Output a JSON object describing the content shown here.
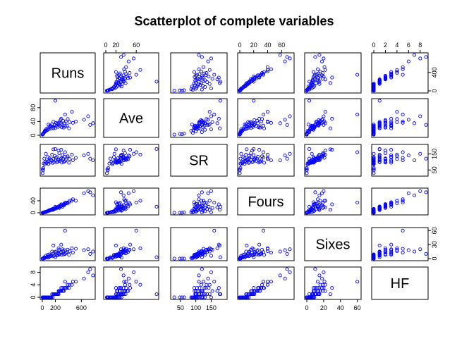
{
  "chart_data": {
    "type": "scatter",
    "title": "Scatterplot of complete variables",
    "variables": [
      "Runs",
      "Ave",
      "SR",
      "Fours",
      "Sixes",
      "HF"
    ],
    "point_color": "#0000ff",
    "axes": {
      "Runs": {
        "range": [
          0,
          780
        ],
        "ticks": [
          "0",
          "200",
          "600"
        ],
        "tick_values": [
          0,
          200,
          600
        ]
      },
      "Ave": {
        "range": [
          0,
          100
        ],
        "ticks": [
          "0",
          "20",
          "60"
        ],
        "tick_values": [
          0,
          20,
          60
        ]
      },
      "SR": {
        "range": [
          25,
          195
        ],
        "ticks": [
          "50",
          "100",
          "150"
        ],
        "tick_values": [
          50,
          100,
          150
        ]
      },
      "Fours": {
        "range": [
          0,
          75
        ],
        "ticks": [
          "0",
          "20",
          "40",
          "60"
        ],
        "tick_values": [
          0,
          20,
          40,
          60
        ]
      },
      "Sixes": {
        "range": [
          0,
          62
        ],
        "ticks": [
          "0",
          "20",
          "40",
          "60"
        ],
        "tick_values": [
          0,
          20,
          40,
          60
        ]
      },
      "HF": {
        "range": [
          0,
          9
        ],
        "ticks": [
          "0",
          "2",
          "4",
          "6",
          "8"
        ],
        "tick_values": [
          0,
          2,
          4,
          6,
          8
        ]
      }
    },
    "axis_ticks_on_plot": {
      "Runs": {
        "ticks": [
          "0",
          "400"
        ],
        "tick_values": [
          0,
          400
        ]
      },
      "Ave": {
        "ticks": [
          "0",
          "40",
          "80"
        ],
        "tick_values": [
          0,
          40,
          80
        ]
      },
      "SR": {
        "ticks": [
          "50",
          "150"
        ],
        "tick_values": [
          50,
          150
        ]
      },
      "Fours": {
        "ticks": [
          "0",
          "40"
        ],
        "tick_values": [
          0,
          40
        ]
      },
      "Sixes": {
        "ticks": [
          "0",
          "30",
          "60"
        ],
        "tick_values": [
          0,
          30,
          60
        ]
      },
      "HF": {
        "ticks": [
          "0",
          "4",
          "8"
        ],
        "tick_values": [
          0,
          4,
          8
        ]
      }
    },
    "records": [
      [
        778,
        35,
        110,
        58,
        15,
        7
      ],
      [
        704,
        55,
        150,
        72,
        20,
        8
      ],
      [
        640,
        45,
        140,
        65,
        18,
        6
      ],
      [
        735,
        30,
        120,
        68,
        10,
        9
      ],
      [
        515,
        40,
        125,
        40,
        21,
        5
      ],
      [
        470,
        36,
        110,
        45,
        13,
        5
      ],
      [
        455,
        68,
        145,
        40,
        22,
        4
      ],
      [
        420,
        38,
        118,
        40,
        16,
        4
      ],
      [
        410,
        20,
        95,
        35,
        8,
        3
      ],
      [
        390,
        47,
        135,
        32,
        19,
        4
      ],
      [
        380,
        28,
        128,
        34,
        14,
        3
      ],
      [
        360,
        40,
        112,
        31,
        12,
        3
      ],
      [
        350,
        26,
        104,
        30,
        10,
        3
      ],
      [
        340,
        35,
        132,
        26,
        18,
        3
      ],
      [
        330,
        22,
        100,
        29,
        9,
        2
      ],
      [
        320,
        42,
        120,
        25,
        16,
        2
      ],
      [
        310,
        30,
        142,
        20,
        20,
        3
      ],
      [
        300,
        23,
        96,
        27,
        8,
        2
      ],
      [
        290,
        33,
        122,
        22,
        13,
        2
      ],
      [
        280,
        44,
        117,
        21,
        14,
        2
      ],
      [
        270,
        27,
        106,
        24,
        9,
        2
      ],
      [
        260,
        38,
        154,
        16,
        19,
        2
      ],
      [
        250,
        31,
        112,
        21,
        10,
        1
      ],
      [
        240,
        24,
        102,
        19,
        7,
        1
      ],
      [
        230,
        34,
        130,
        17,
        13,
        1
      ],
      [
        220,
        28,
        98,
        18,
        7,
        1
      ],
      [
        210,
        36,
        125,
        14,
        15,
        1
      ],
      [
        200,
        21,
        110,
        16,
        8,
        1
      ],
      [
        190,
        30,
        137,
        13,
        14,
        1
      ],
      [
        180,
        25,
        100,
        14,
        6,
        1
      ],
      [
        170,
        39,
        118,
        12,
        11,
        1
      ],
      [
        160,
        22,
        94,
        13,
        5,
        0
      ],
      [
        150,
        32,
        145,
        9,
        15,
        1
      ],
      [
        140,
        26,
        108,
        11,
        6,
        0
      ],
      [
        130,
        19,
        115,
        10,
        7,
        0
      ],
      [
        120,
        28,
        97,
        9,
        5,
        0
      ],
      [
        110,
        24,
        123,
        7,
        9,
        0
      ],
      [
        100,
        18,
        105,
        8,
        4,
        0
      ],
      [
        95,
        31,
        88,
        7,
        2,
        0
      ],
      [
        85,
        16,
        130,
        5,
        8,
        0
      ],
      [
        75,
        20,
        102,
        5,
        4,
        0
      ],
      [
        65,
        14,
        92,
        4,
        3,
        0
      ],
      [
        55,
        17,
        150,
        2,
        6,
        0
      ],
      [
        45,
        11,
        100,
        3,
        2,
        0
      ],
      [
        38,
        13,
        85,
        2,
        1,
        0
      ],
      [
        30,
        9,
        120,
        1,
        3,
        0
      ],
      [
        22,
        7,
        90,
        1,
        1,
        0
      ],
      [
        15,
        5,
        62,
        1,
        0,
        0
      ],
      [
        10,
        4,
        48,
        0,
        0,
        0
      ],
      [
        6,
        3,
        55,
        0,
        0,
        0
      ],
      [
        4,
        2,
        30,
        0,
        0,
        0
      ],
      [
        200,
        100,
        180,
        20,
        3,
        1
      ],
      [
        250,
        35,
        170,
        18,
        22,
        2
      ],
      [
        290,
        48,
        175,
        28,
        30,
        3
      ],
      [
        170,
        20,
        178,
        10,
        28,
        1
      ],
      [
        350,
        60,
        160,
        34,
        60,
        5
      ]
    ]
  }
}
